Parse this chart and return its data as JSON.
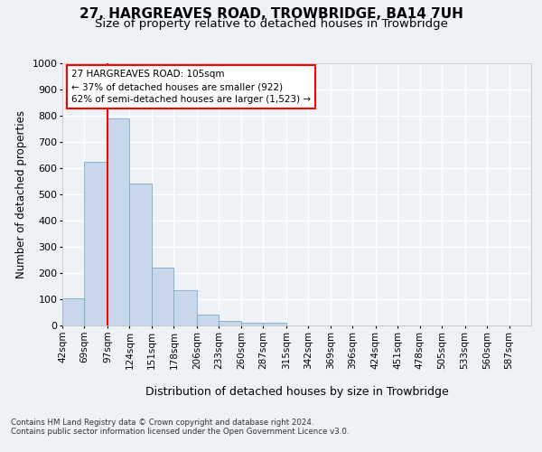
{
  "title": "27, HARGREAVES ROAD, TROWBRIDGE, BA14 7UH",
  "subtitle": "Size of property relative to detached houses in Trowbridge",
  "xlabel": "Distribution of detached houses by size in Trowbridge",
  "ylabel": "Number of detached properties",
  "bar_color": "#c8d8ea",
  "bar_edge_color": "#7aaac8",
  "vline_x": 97,
  "vline_color": "red",
  "annotation_text": "27 HARGREAVES ROAD: 105sqm\n← 37% of detached houses are smaller (922)\n62% of semi-detached houses are larger (1,523) →",
  "annotation_box_color": "white",
  "annotation_box_edge_color": "red",
  "categories": [
    "42sqm",
    "69sqm",
    "97sqm",
    "124sqm",
    "151sqm",
    "178sqm",
    "206sqm",
    "233sqm",
    "260sqm",
    "287sqm",
    "315sqm",
    "342sqm",
    "369sqm",
    "396sqm",
    "424sqm",
    "451sqm",
    "478sqm",
    "505sqm",
    "533sqm",
    "560sqm",
    "587sqm"
  ],
  "bin_edges": [
    42,
    69,
    97,
    124,
    151,
    178,
    206,
    233,
    260,
    287,
    315,
    342,
    369,
    396,
    424,
    451,
    478,
    505,
    533,
    560,
    587,
    614
  ],
  "values": [
    105,
    625,
    790,
    540,
    220,
    135,
    42,
    18,
    10,
    10,
    0,
    0,
    0,
    0,
    0,
    0,
    0,
    0,
    0,
    0,
    0
  ],
  "ylim": [
    0,
    1000
  ],
  "yticks": [
    0,
    100,
    200,
    300,
    400,
    500,
    600,
    700,
    800,
    900,
    1000
  ],
  "background_color": "#eef2f7",
  "plot_background": "#eef2f7",
  "footer_text": "Contains HM Land Registry data © Crown copyright and database right 2024.\nContains public sector information licensed under the Open Government Licence v3.0.",
  "grid_color": "#ffffff",
  "title_fontsize": 11,
  "subtitle_fontsize": 9.5,
  "xlabel_fontsize": 9,
  "ylabel_fontsize": 8.5,
  "tick_fontsize": 8,
  "xtick_fontsize": 7.5
}
